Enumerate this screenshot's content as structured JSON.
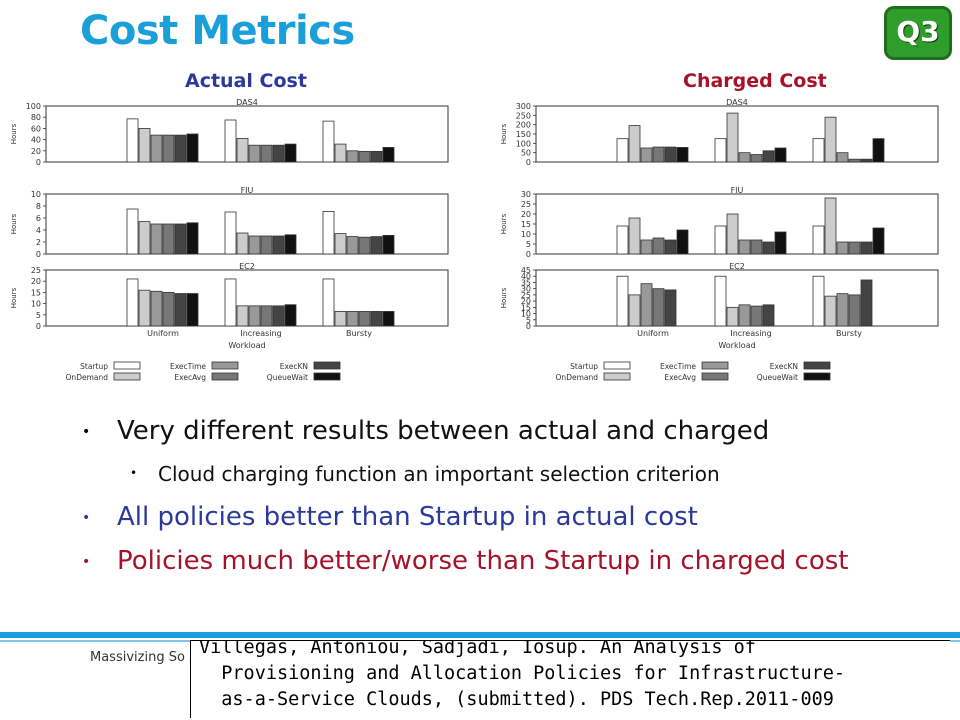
{
  "slide": {
    "title": "Cost Metrics",
    "badge": "Q3",
    "actual_label": "Actual Cost",
    "charged_label": "Charged Cost",
    "bullets": [
      {
        "text": "Very different results between actual and charged",
        "level": 1,
        "color": "#111111"
      },
      {
        "text": "Cloud charging function an important selection criterion",
        "level": 2,
        "color": "#111111"
      },
      {
        "text": "All policies better than Startup in actual cost",
        "level": 1,
        "color": "#2b3a9a"
      },
      {
        "text": "Policies much better/worse than Startup in charged cost",
        "level": 1,
        "color": "#a5122a"
      }
    ],
    "footer": "Massivizing So",
    "citation": [
      "Villegas, Antoniou, Sadjadi, Iosup. An Analysis of",
      "  Provisioning and Allocation Policies for Infrastructure-",
      "  as-a-Service Clouds, (submitted). PDS Tech.Rep.2011-009"
    ]
  },
  "chart_data": [
    {
      "type": "bar",
      "title": "Actual Cost",
      "xlabel": "Workload",
      "ylabel": "Hours",
      "categories": [
        "Uniform",
        "Increasing",
        "Bursty"
      ],
      "legend": [
        "Startup",
        "OnDemand",
        "ExecTime",
        "ExecAvg",
        "ExecKN",
        "QueueWait"
      ],
      "legend_colors": [
        "#ffffff",
        "#cccccc",
        "#999999",
        "#777777",
        "#444444",
        "#111111"
      ],
      "panels": [
        {
          "name": "DAS4",
          "ylim": [
            0,
            100
          ],
          "yticks": [
            0,
            20,
            40,
            60,
            80,
            100
          ],
          "values": [
            [
              77,
              60,
              48,
              48,
              48,
              50
            ],
            [
              75,
              42,
              30,
              30,
              30,
              32
            ],
            [
              73,
              32,
              20,
              19,
              19,
              26
            ]
          ]
        },
        {
          "name": "FIU",
          "ylim": [
            0,
            10
          ],
          "yticks": [
            0,
            2,
            4,
            6,
            8,
            10
          ],
          "values": [
            [
              7.5,
              5.4,
              5.0,
              5.0,
              5.0,
              5.2
            ],
            [
              7.0,
              3.5,
              3.0,
              3.0,
              3.0,
              3.2
            ],
            [
              7.1,
              3.4,
              2.9,
              2.8,
              2.9,
              3.1
            ]
          ]
        },
        {
          "name": "EC2",
          "ylim": [
            0,
            25
          ],
          "yticks": [
            0,
            5,
            10,
            15,
            20,
            25
          ],
          "values": [
            [
              21,
              16,
              15.5,
              15,
              14.5,
              14.5
            ],
            [
              21,
              9,
              9,
              9,
              9,
              9.5
            ],
            [
              21,
              6.5,
              6.5,
              6.5,
              6.5,
              6.5
            ]
          ]
        }
      ]
    },
    {
      "type": "bar",
      "title": "Charged Cost",
      "xlabel": "Workload",
      "ylabel": "Hours",
      "categories": [
        "Uniform",
        "Increasing",
        "Bursty"
      ],
      "legend": [
        "Startup",
        "OnDemand",
        "ExecTime",
        "ExecAvg",
        "ExecKN",
        "QueueWait"
      ],
      "legend_colors": [
        "#ffffff",
        "#cccccc",
        "#999999",
        "#777777",
        "#444444",
        "#111111"
      ],
      "panels": [
        {
          "name": "DAS4",
          "ylim": [
            0,
            300
          ],
          "yticks": [
            0,
            50,
            100,
            150,
            200,
            250,
            300
          ],
          "values": [
            [
              125,
              195,
              75,
              80,
              80,
              78
            ],
            [
              125,
              262,
              50,
              40,
              60,
              75
            ],
            [
              125,
              240,
              50,
              15,
              15,
              125
            ]
          ]
        },
        {
          "name": "FIU",
          "ylim": [
            0,
            30
          ],
          "yticks": [
            0,
            5,
            10,
            15,
            20,
            25,
            30
          ],
          "values": [
            [
              14,
              18,
              7,
              8,
              7,
              12
            ],
            [
              14,
              20,
              7,
              7,
              6,
              11
            ],
            [
              14,
              28,
              6,
              6,
              6,
              13
            ]
          ]
        },
        {
          "name": "EC2",
          "ylim": [
            0,
            45
          ],
          "yticks": [
            0,
            5,
            10,
            15,
            20,
            25,
            30,
            35,
            40,
            45
          ],
          "values": [
            [
              40,
              25,
              34,
              30,
              29,
              0
            ],
            [
              40,
              15,
              17,
              16,
              17,
              0
            ],
            [
              40,
              24,
              26,
              25,
              37,
              0
            ]
          ]
        }
      ]
    }
  ]
}
